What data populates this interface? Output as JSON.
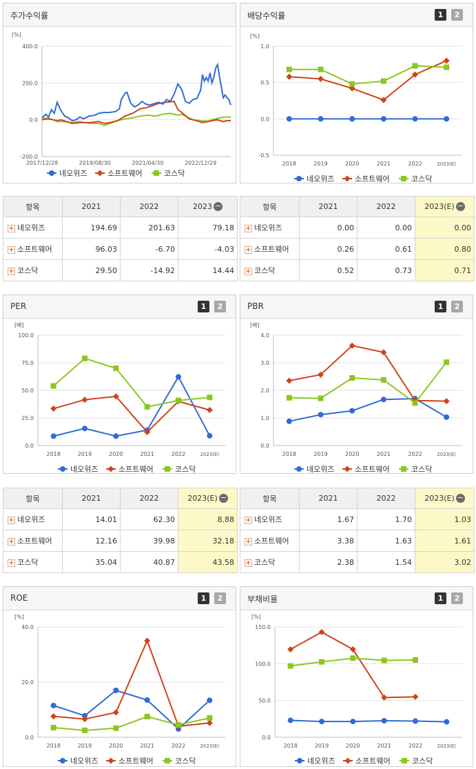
{
  "colors": {
    "neo": "#2f6bd6",
    "soft": "#d2421a",
    "kos": "#8cc61e"
  },
  "icons": {
    "add": "plus-icon",
    "collapse": "minus-circle-icon",
    "tab1": "page-1-button",
    "tab2": "page-2-button"
  },
  "buttons": {
    "one": "1",
    "two": "2",
    "plus": "+",
    "minus": "−"
  },
  "legend_names": [
    "네오위즈",
    "소프트웨어",
    "코스닥"
  ],
  "panels": {
    "stock": {
      "title": "주가수익률"
    },
    "div": {
      "title": "배당수익률"
    },
    "per": {
      "title": "PER"
    },
    "pbr": {
      "title": "PBR"
    },
    "roe": {
      "title": "ROE"
    },
    "debt": {
      "title": "부채비율"
    }
  },
  "tables": {
    "stock": {
      "head": [
        "항목",
        "2021",
        "2022",
        "2023"
      ],
      "rows": [
        {
          "name": "네오위즈",
          "vals": [
            "194.69",
            "201.63",
            "79.18"
          ]
        },
        {
          "name": "소프트웨어",
          "vals": [
            "96.03",
            "-6.70",
            "-4.03"
          ]
        },
        {
          "name": "코스닥",
          "vals": [
            "29.50",
            "-14.92",
            "14.44"
          ]
        }
      ]
    },
    "div": {
      "head": [
        "항목",
        "2021",
        "2022",
        "2023(E)"
      ],
      "rows": [
        {
          "name": "네오위즈",
          "vals": [
            "0.00",
            "0.00",
            "0.00"
          ]
        },
        {
          "name": "소프트웨어",
          "vals": [
            "0.26",
            "0.61",
            "0.80"
          ]
        },
        {
          "name": "코스닥",
          "vals": [
            "0.52",
            "0.73",
            "0.71"
          ]
        }
      ]
    },
    "per": {
      "head": [
        "항목",
        "2021",
        "2022",
        "2023(E)"
      ],
      "rows": [
        {
          "name": "네오위즈",
          "vals": [
            "14.01",
            "62.30",
            "8.88"
          ]
        },
        {
          "name": "소프트웨어",
          "vals": [
            "12.16",
            "39.98",
            "32.18"
          ]
        },
        {
          "name": "코스닥",
          "vals": [
            "35.04",
            "40.87",
            "43.58"
          ]
        }
      ]
    },
    "pbr": {
      "head": [
        "항목",
        "2021",
        "2022",
        "2023(E)"
      ],
      "rows": [
        {
          "name": "네오위즈",
          "vals": [
            "1.67",
            "1.70",
            "1.03"
          ]
        },
        {
          "name": "소프트웨어",
          "vals": [
            "3.38",
            "1.63",
            "1.61"
          ]
        },
        {
          "name": "코스닥",
          "vals": [
            "2.38",
            "1.54",
            "3.02"
          ]
        }
      ]
    }
  },
  "chart_data": [
    {
      "id": "stock",
      "type": "line",
      "title": "주가수익률",
      "unit": "[%]",
      "ylim": [
        -200,
        400
      ],
      "yticks": [
        "400.0",
        "200.0",
        "0.0",
        "-200.0"
      ],
      "xticks": [
        "2017/12/28",
        "2019/08/30",
        "2021/04/30",
        "2022/12/29"
      ],
      "x_range": [
        "2017-12-28",
        "2023-12-28"
      ],
      "series": [
        {
          "name": "네오위즈",
          "color": "#2f6bd6",
          "points": [
            [
              0,
              10
            ],
            [
              0.02,
              30
            ],
            [
              0.035,
              15
            ],
            [
              0.05,
              55
            ],
            [
              0.065,
              35
            ],
            [
              0.08,
              95
            ],
            [
              0.1,
              50
            ],
            [
              0.12,
              20
            ],
            [
              0.14,
              10
            ],
            [
              0.16,
              -5
            ],
            [
              0.18,
              0
            ],
            [
              0.2,
              15
            ],
            [
              0.22,
              5
            ],
            [
              0.25,
              20
            ],
            [
              0.28,
              25
            ],
            [
              0.3,
              35
            ],
            [
              0.33,
              40
            ],
            [
              0.36,
              40
            ],
            [
              0.39,
              45
            ],
            [
              0.41,
              60
            ],
            [
              0.42,
              110
            ],
            [
              0.44,
              145
            ],
            [
              0.45,
              150
            ],
            [
              0.47,
              90
            ],
            [
              0.49,
              70
            ],
            [
              0.51,
              80
            ],
            [
              0.53,
              100
            ],
            [
              0.55,
              85
            ],
            [
              0.57,
              80
            ],
            [
              0.6,
              90
            ],
            [
              0.62,
              95
            ],
            [
              0.64,
              85
            ],
            [
              0.66,
              110
            ],
            [
              0.68,
              100
            ],
            [
              0.7,
              140
            ],
            [
              0.72,
              195
            ],
            [
              0.74,
              165
            ],
            [
              0.76,
              100
            ],
            [
              0.78,
              90
            ],
            [
              0.8,
              110
            ],
            [
              0.82,
              115
            ],
            [
              0.84,
              160
            ],
            [
              0.85,
              245
            ],
            [
              0.86,
              210
            ],
            [
              0.87,
              230
            ],
            [
              0.88,
              210
            ],
            [
              0.89,
              255
            ],
            [
              0.9,
              200
            ],
            [
              0.91,
              230
            ],
            [
              0.92,
              280
            ],
            [
              0.93,
              300
            ],
            [
              0.94,
              235
            ],
            [
              0.95,
              180
            ],
            [
              0.96,
              120
            ],
            [
              0.97,
              135
            ],
            [
              0.98,
              120
            ],
            [
              0.99,
              110
            ],
            [
              1.0,
              80
            ]
          ]
        },
        {
          "name": "소프트웨어",
          "color": "#d2421a",
          "points": [
            [
              0,
              0
            ],
            [
              0.03,
              5
            ],
            [
              0.06,
              0
            ],
            [
              0.08,
              -5
            ],
            [
              0.1,
              0
            ],
            [
              0.13,
              -10
            ],
            [
              0.16,
              -20
            ],
            [
              0.2,
              -15
            ],
            [
              0.25,
              -15
            ],
            [
              0.3,
              -10
            ],
            [
              0.33,
              -20
            ],
            [
              0.36,
              -15
            ],
            [
              0.4,
              -5
            ],
            [
              0.44,
              20
            ],
            [
              0.48,
              35
            ],
            [
              0.52,
              60
            ],
            [
              0.55,
              65
            ],
            [
              0.58,
              75
            ],
            [
              0.62,
              90
            ],
            [
              0.66,
              95
            ],
            [
              0.7,
              100
            ],
            [
              0.72,
              55
            ],
            [
              0.74,
              40
            ],
            [
              0.78,
              5
            ],
            [
              0.8,
              0
            ],
            [
              0.82,
              -5
            ],
            [
              0.85,
              -15
            ],
            [
              0.88,
              -10
            ],
            [
              0.9,
              -5
            ],
            [
              0.93,
              0
            ],
            [
              0.96,
              -10
            ],
            [
              0.98,
              -5
            ],
            [
              1.0,
              -5
            ]
          ]
        },
        {
          "name": "코스닥",
          "color": "#8cc61e",
          "points": [
            [
              0,
              5
            ],
            [
              0.03,
              10
            ],
            [
              0.06,
              0
            ],
            [
              0.08,
              -10
            ],
            [
              0.12,
              -10
            ],
            [
              0.16,
              -15
            ],
            [
              0.2,
              -10
            ],
            [
              0.25,
              -20
            ],
            [
              0.3,
              -20
            ],
            [
              0.33,
              -30
            ],
            [
              0.36,
              -20
            ],
            [
              0.4,
              -5
            ],
            [
              0.44,
              5
            ],
            [
              0.48,
              10
            ],
            [
              0.52,
              20
            ],
            [
              0.56,
              25
            ],
            [
              0.6,
              20
            ],
            [
              0.64,
              30
            ],
            [
              0.68,
              35
            ],
            [
              0.72,
              25
            ],
            [
              0.74,
              30
            ],
            [
              0.76,
              20
            ],
            [
              0.8,
              0
            ],
            [
              0.84,
              -5
            ],
            [
              0.88,
              -8
            ],
            [
              0.9,
              0
            ],
            [
              0.94,
              10
            ],
            [
              0.97,
              15
            ],
            [
              1.0,
              15
            ]
          ]
        }
      ]
    },
    {
      "id": "div",
      "type": "line",
      "title": "배당수익률",
      "unit": "[%]",
      "categories": [
        "2018",
        "2019",
        "2020",
        "2021",
        "2022",
        "2023(E)"
      ],
      "ylim": [
        -0.5,
        1.0
      ],
      "yticks": [
        "1.0",
        "0.5",
        "0.0",
        "-0.5"
      ],
      "series": [
        {
          "name": "네오위즈",
          "color": "#2f6bd6",
          "marker": "circle",
          "values": [
            0.0,
            0.0,
            0.0,
            0.0,
            0.0,
            0.0
          ]
        },
        {
          "name": "소프트웨어",
          "color": "#d2421a",
          "marker": "diamond",
          "values": [
            0.58,
            0.55,
            0.42,
            0.26,
            0.61,
            0.8
          ]
        },
        {
          "name": "코스닥",
          "color": "#8cc61e",
          "marker": "square",
          "values": [
            0.68,
            0.68,
            0.48,
            0.52,
            0.73,
            0.71
          ]
        }
      ]
    },
    {
      "id": "per",
      "type": "line",
      "title": "PER",
      "unit": "[배]",
      "categories": [
        "2018",
        "2019",
        "2020",
        "2021",
        "2022",
        "2023(E)"
      ],
      "ylim": [
        0,
        100
      ],
      "yticks": [
        "100.0",
        "75.0",
        "50.0",
        "25.0",
        "0.0"
      ],
      "series": [
        {
          "name": "네오위즈",
          "color": "#2f6bd6",
          "marker": "circle",
          "values": [
            8.5,
            15.5,
            8.5,
            14.01,
            62.3,
            8.88
          ]
        },
        {
          "name": "소프트웨어",
          "color": "#d2421a",
          "marker": "diamond",
          "values": [
            33.5,
            41.5,
            44.5,
            12.16,
            39.98,
            32.18
          ]
        },
        {
          "name": "코스닥",
          "color": "#8cc61e",
          "marker": "square",
          "values": [
            54.0,
            79.0,
            70.0,
            35.04,
            40.87,
            43.58
          ]
        }
      ]
    },
    {
      "id": "pbr",
      "type": "line",
      "title": "PBR",
      "unit": "[배]",
      "categories": [
        "2018",
        "2019",
        "2020",
        "2021",
        "2022",
        "2023(E)"
      ],
      "ylim": [
        0,
        4
      ],
      "yticks": [
        "4.0",
        "3.0",
        "2.0",
        "1.0",
        "0.0"
      ],
      "series": [
        {
          "name": "네오위즈",
          "color": "#2f6bd6",
          "marker": "circle",
          "values": [
            0.88,
            1.12,
            1.26,
            1.67,
            1.7,
            1.03
          ]
        },
        {
          "name": "소프트웨어",
          "color": "#d2421a",
          "marker": "diamond",
          "values": [
            2.35,
            2.57,
            3.62,
            3.38,
            1.63,
            1.61
          ]
        },
        {
          "name": "코스닥",
          "color": "#8cc61e",
          "marker": "square",
          "values": [
            1.73,
            1.71,
            2.45,
            2.38,
            1.54,
            3.02
          ]
        }
      ]
    },
    {
      "id": "roe",
      "type": "line",
      "title": "ROE",
      "unit": "[%]",
      "categories": [
        "2018",
        "2019",
        "2020",
        "2021",
        "2022",
        "2023(E)"
      ],
      "ylim": [
        0,
        40
      ],
      "yticks": [
        "40.0",
        "20.0",
        "0.0"
      ],
      "series": [
        {
          "name": "네오위즈",
          "color": "#2f6bd6",
          "marker": "circle",
          "values": [
            11.5,
            7.8,
            17.0,
            13.5,
            3.0,
            13.4
          ]
        },
        {
          "name": "소프트웨어",
          "color": "#d2421a",
          "marker": "diamond",
          "values": [
            7.6,
            6.6,
            9.0,
            35.0,
            4.0,
            5.2
          ]
        },
        {
          "name": "코스닥",
          "color": "#8cc61e",
          "marker": "square",
          "values": [
            3.5,
            2.5,
            3.3,
            7.5,
            4.5,
            7.0
          ]
        }
      ]
    },
    {
      "id": "debt",
      "type": "line",
      "title": "부채비율",
      "unit": "[%]",
      "categories": [
        "2018",
        "2019",
        "2020",
        "2021",
        "2022",
        "2023(E)"
      ],
      "ylim": [
        0,
        150
      ],
      "yticks": [
        "150.0",
        "100.0",
        "50.0",
        "0.0"
      ],
      "series": [
        {
          "name": "네오위즈",
          "color": "#2f6bd6",
          "marker": "circle",
          "values": [
            23.0,
            21.5,
            21.5,
            22.5,
            22.0,
            21.0
          ]
        },
        {
          "name": "소프트웨어",
          "color": "#d2421a",
          "marker": "diamond",
          "values": [
            119.5,
            143.0,
            119.5,
            54.0,
            55.0,
            null
          ]
        },
        {
          "name": "코스닥",
          "color": "#8cc61e",
          "marker": "square",
          "values": [
            97.0,
            102.5,
            107.5,
            104.5,
            105.0,
            null
          ]
        }
      ]
    }
  ]
}
